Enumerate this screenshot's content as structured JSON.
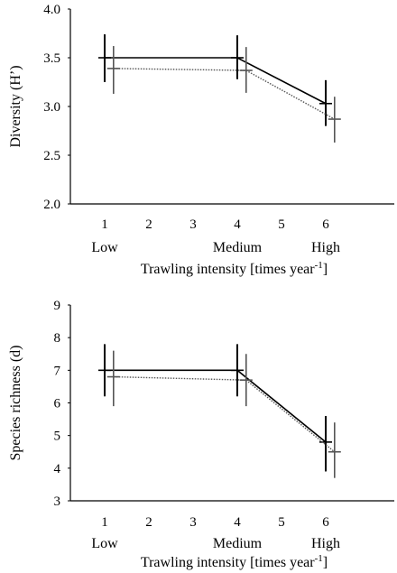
{
  "chart_data": [
    {
      "type": "line",
      "ylabel": "Diversity (H’)",
      "xlabel": "Trawling intensity [times year",
      "xlabel_sup": "-1",
      "xlabel_end": "]",
      "x_ticks": [
        "1",
        "2",
        "3",
        "4",
        "5",
        "6"
      ],
      "x_categories": [
        {
          "x": 1,
          "label": "Low"
        },
        {
          "x": 4,
          "label": "Medium"
        },
        {
          "x": 6,
          "label": "High"
        }
      ],
      "y_ticks": [
        "2.0",
        "2.5",
        "3.0",
        "3.5",
        "4.0"
      ],
      "xlim": [
        0,
        8
      ],
      "ylim": [
        2.0,
        4.0
      ],
      "grid": false,
      "series": [
        {
          "style": "solid",
          "points": [
            {
              "x": 1,
              "y": 3.5,
              "lo": 3.25,
              "hi": 3.74
            },
            {
              "x": 4,
              "y": 3.5,
              "lo": 3.28,
              "hi": 3.73
            },
            {
              "x": 6,
              "y": 3.03,
              "lo": 2.8,
              "hi": 3.27
            }
          ]
        },
        {
          "style": "dotted",
          "points": [
            {
              "x": 1.2,
              "y": 3.39,
              "lo": 3.13,
              "hi": 3.62
            },
            {
              "x": 4.2,
              "y": 3.37,
              "lo": 3.14,
              "hi": 3.61
            },
            {
              "x": 6.2,
              "y": 2.87,
              "lo": 2.63,
              "hi": 3.1
            }
          ]
        }
      ]
    },
    {
      "type": "line",
      "ylabel": "Species richness (d)",
      "xlabel": "Trawling intensity [times year",
      "xlabel_sup": "-1",
      "xlabel_end": "]",
      "x_ticks": [
        "1",
        "2",
        "3",
        "4",
        "5",
        "6"
      ],
      "x_categories": [
        {
          "x": 1,
          "label": "Low"
        },
        {
          "x": 4,
          "label": "Medium"
        },
        {
          "x": 6,
          "label": "High"
        }
      ],
      "y_ticks": [
        "3",
        "4",
        "5",
        "6",
        "7",
        "8",
        "9"
      ],
      "xlim": [
        0,
        8
      ],
      "ylim": [
        3,
        9
      ],
      "grid": false,
      "series": [
        {
          "style": "solid",
          "points": [
            {
              "x": 1,
              "y": 7.0,
              "lo": 6.2,
              "hi": 7.8
            },
            {
              "x": 4,
              "y": 7.0,
              "lo": 6.2,
              "hi": 7.8
            },
            {
              "x": 6,
              "y": 4.8,
              "lo": 3.9,
              "hi": 5.6
            }
          ]
        },
        {
          "style": "dotted",
          "points": [
            {
              "x": 1.2,
              "y": 6.8,
              "lo": 5.9,
              "hi": 7.6
            },
            {
              "x": 4.2,
              "y": 6.7,
              "lo": 5.9,
              "hi": 7.5
            },
            {
              "x": 6.2,
              "y": 4.5,
              "lo": 3.7,
              "hi": 5.4
            }
          ]
        }
      ]
    }
  ]
}
